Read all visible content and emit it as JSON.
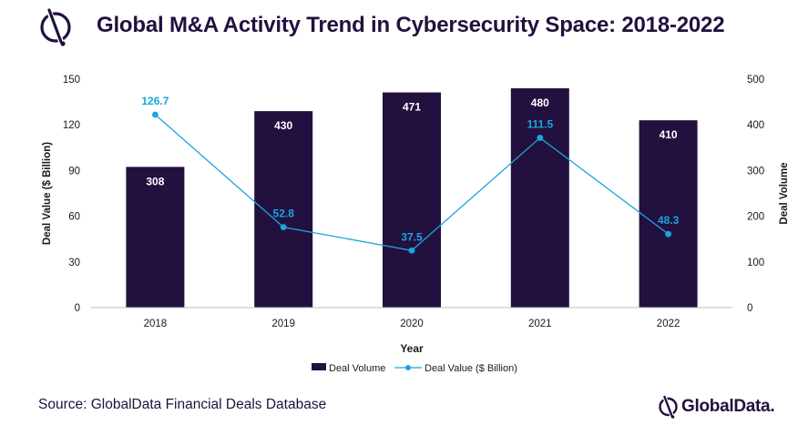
{
  "header": {
    "title": "Global M&A Activity Trend in Cybersecurity Space: 2018-2022"
  },
  "colors": {
    "bar": "#22103e",
    "line": "#1ba6dd",
    "bar_label": "#ffffff",
    "axis_text": "#1a1a1a",
    "title": "#22103e"
  },
  "chart_data": {
    "type": "bar+line",
    "categories": [
      "2018",
      "2019",
      "2020",
      "2021",
      "2022"
    ],
    "series": [
      {
        "name": "Deal Volume",
        "type": "bar",
        "axis": "right",
        "values": [
          308,
          430,
          471,
          480,
          410
        ],
        "labels": [
          "308",
          "430",
          "471",
          "480",
          "410"
        ]
      },
      {
        "name": "Deal Value ($ Billion)",
        "type": "line",
        "axis": "left",
        "values": [
          126.7,
          52.8,
          37.5,
          111.5,
          48.3
        ],
        "labels": [
          "126.7",
          "52.8",
          "37.5",
          "111.5",
          "48.3"
        ]
      }
    ],
    "xlabel": "Year",
    "ylabel_left": "Deal Value ($ Billion)",
    "ylabel_right": "Deal Volume",
    "ylim_left": [
      0,
      150
    ],
    "ylim_right": [
      0,
      500
    ],
    "yticks_left": [
      "0",
      "30",
      "60",
      "90",
      "120",
      "150"
    ],
    "yticks_right": [
      "0",
      "100",
      "200",
      "300",
      "400",
      "500"
    ],
    "grid": false,
    "legend_position": "bottom"
  },
  "footer": {
    "source": "Source: GlobalData Financial Deals Database",
    "brand": "GlobalData",
    "brand_suffix": "."
  }
}
